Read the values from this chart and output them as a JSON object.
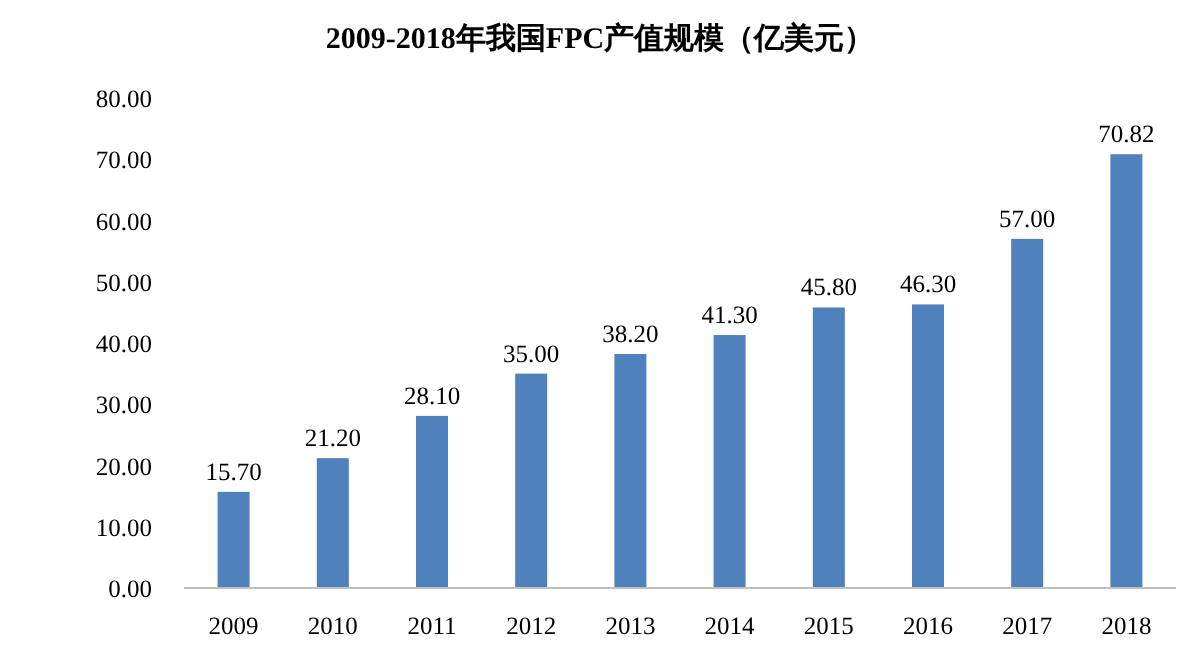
{
  "chart_data": {
    "type": "bar",
    "title": "2009-2018年我国FPC产值规模（亿美元）",
    "categories": [
      "2009",
      "2010",
      "2011",
      "2012",
      "2013",
      "2014",
      "2015",
      "2016",
      "2017",
      "2018"
    ],
    "values": [
      15.7,
      21.2,
      28.1,
      35.0,
      38.2,
      41.3,
      45.8,
      46.3,
      57.0,
      70.82
    ],
    "value_labels": [
      "15.70",
      "21.20",
      "28.10",
      "35.00",
      "38.20",
      "41.30",
      "45.80",
      "46.30",
      "57.00",
      "70.82"
    ],
    "color": "#4f81bd",
    "ylim": [
      0,
      80
    ],
    "yticks": [
      {
        "value": 0,
        "label": "0.00"
      },
      {
        "value": 10,
        "label": "10.00"
      },
      {
        "value": 20,
        "label": "20.00"
      },
      {
        "value": 30,
        "label": "30.00"
      },
      {
        "value": 40,
        "label": "40.00"
      },
      {
        "value": 50,
        "label": "50.00"
      },
      {
        "value": 60,
        "label": "60.00"
      },
      {
        "value": 70,
        "label": "70.00"
      },
      {
        "value": 80,
        "label": "80.00"
      }
    ]
  }
}
